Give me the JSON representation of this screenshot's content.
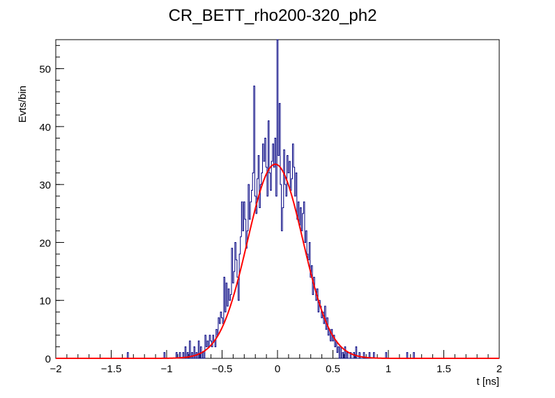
{
  "chart_data": {
    "type": "histogram",
    "title": "CR_BETT_rho200-320_ph2",
    "xlabel": "t [ns]",
    "ylabel": "Evts/bin",
    "xlim": [
      -2,
      2
    ],
    "ylim": [
      0,
      55
    ],
    "x_ticks": [
      "−2",
      "−1.5",
      "−1",
      "−0.5",
      "0",
      "0.5",
      "1",
      "1.5",
      "2"
    ],
    "y_ticks": [
      "0",
      "10",
      "20",
      "30",
      "40",
      "50"
    ],
    "bin_width": 0.01,
    "histogram_color": "#000080",
    "fit_color": "#ff0000",
    "bins": [
      {
        "x": -1.35,
        "y": 1
      },
      {
        "x": -1.02,
        "y": 1
      },
      {
        "x": -0.91,
        "y": 1
      },
      {
        "x": -0.88,
        "y": 1
      },
      {
        "x": -0.85,
        "y": 1
      },
      {
        "x": -0.83,
        "y": 2
      },
      {
        "x": -0.81,
        "y": 1
      },
      {
        "x": -0.79,
        "y": 3
      },
      {
        "x": -0.77,
        "y": 1
      },
      {
        "x": -0.75,
        "y": 2
      },
      {
        "x": -0.73,
        "y": 1
      },
      {
        "x": -0.71,
        "y": 3
      },
      {
        "x": -0.69,
        "y": 2
      },
      {
        "x": -0.67,
        "y": 1
      },
      {
        "x": -0.65,
        "y": 4
      },
      {
        "x": -0.64,
        "y": 2
      },
      {
        "x": -0.63,
        "y": 3
      },
      {
        "x": -0.62,
        "y": 2
      },
      {
        "x": -0.61,
        "y": 4
      },
      {
        "x": -0.6,
        "y": 3
      },
      {
        "x": -0.59,
        "y": 2
      },
      {
        "x": -0.58,
        "y": 4
      },
      {
        "x": -0.57,
        "y": 3
      },
      {
        "x": -0.56,
        "y": 2
      },
      {
        "x": -0.55,
        "y": 5
      },
      {
        "x": -0.54,
        "y": 4
      },
      {
        "x": -0.53,
        "y": 7
      },
      {
        "x": -0.52,
        "y": 6
      },
      {
        "x": -0.51,
        "y": 8
      },
      {
        "x": -0.5,
        "y": 7
      },
      {
        "x": -0.49,
        "y": 6
      },
      {
        "x": -0.48,
        "y": 14
      },
      {
        "x": -0.47,
        "y": 8
      },
      {
        "x": -0.46,
        "y": 13
      },
      {
        "x": -0.45,
        "y": 9
      },
      {
        "x": -0.44,
        "y": 12
      },
      {
        "x": -0.43,
        "y": 10
      },
      {
        "x": -0.42,
        "y": 11
      },
      {
        "x": -0.41,
        "y": 19
      },
      {
        "x": -0.4,
        "y": 13
      },
      {
        "x": -0.39,
        "y": 15
      },
      {
        "x": -0.38,
        "y": 20
      },
      {
        "x": -0.37,
        "y": 17
      },
      {
        "x": -0.36,
        "y": 14
      },
      {
        "x": -0.35,
        "y": 10
      },
      {
        "x": -0.34,
        "y": 18
      },
      {
        "x": -0.33,
        "y": 21
      },
      {
        "x": -0.32,
        "y": 27
      },
      {
        "x": -0.31,
        "y": 22
      },
      {
        "x": -0.3,
        "y": 27
      },
      {
        "x": -0.29,
        "y": 24
      },
      {
        "x": -0.28,
        "y": 19
      },
      {
        "x": -0.27,
        "y": 22
      },
      {
        "x": -0.26,
        "y": 30
      },
      {
        "x": -0.25,
        "y": 24
      },
      {
        "x": -0.24,
        "y": 27
      },
      {
        "x": -0.23,
        "y": 29
      },
      {
        "x": -0.22,
        "y": 32
      },
      {
        "x": -0.21,
        "y": 47
      },
      {
        "x": -0.2,
        "y": 28
      },
      {
        "x": -0.19,
        "y": 25
      },
      {
        "x": -0.18,
        "y": 31
      },
      {
        "x": -0.17,
        "y": 35
      },
      {
        "x": -0.16,
        "y": 26
      },
      {
        "x": -0.15,
        "y": 30
      },
      {
        "x": -0.14,
        "y": 32
      },
      {
        "x": -0.13,
        "y": 37
      },
      {
        "x": -0.12,
        "y": 34
      },
      {
        "x": -0.11,
        "y": 38
      },
      {
        "x": -0.1,
        "y": 33
      },
      {
        "x": -0.09,
        "y": 28
      },
      {
        "x": -0.08,
        "y": 41
      },
      {
        "x": -0.07,
        "y": 32
      },
      {
        "x": -0.06,
        "y": 29
      },
      {
        "x": -0.05,
        "y": 34
      },
      {
        "x": -0.04,
        "y": 37
      },
      {
        "x": -0.03,
        "y": 33
      },
      {
        "x": -0.02,
        "y": 38
      },
      {
        "x": -0.01,
        "y": 28
      },
      {
        "x": 0.0,
        "y": 55
      },
      {
        "x": 0.01,
        "y": 35
      },
      {
        "x": 0.02,
        "y": 44
      },
      {
        "x": 0.03,
        "y": 30
      },
      {
        "x": 0.04,
        "y": 22
      },
      {
        "x": 0.05,
        "y": 26
      },
      {
        "x": 0.06,
        "y": 36
      },
      {
        "x": 0.07,
        "y": 30
      },
      {
        "x": 0.08,
        "y": 28
      },
      {
        "x": 0.09,
        "y": 35
      },
      {
        "x": 0.1,
        "y": 32
      },
      {
        "x": 0.11,
        "y": 34
      },
      {
        "x": 0.12,
        "y": 29
      },
      {
        "x": 0.13,
        "y": 31
      },
      {
        "x": 0.14,
        "y": 37
      },
      {
        "x": 0.15,
        "y": 33
      },
      {
        "x": 0.16,
        "y": 28
      },
      {
        "x": 0.17,
        "y": 32
      },
      {
        "x": 0.18,
        "y": 24
      },
      {
        "x": 0.19,
        "y": 27
      },
      {
        "x": 0.2,
        "y": 23
      },
      {
        "x": 0.21,
        "y": 26
      },
      {
        "x": 0.22,
        "y": 22
      },
      {
        "x": 0.23,
        "y": 25
      },
      {
        "x": 0.24,
        "y": 27
      },
      {
        "x": 0.25,
        "y": 20
      },
      {
        "x": 0.26,
        "y": 22
      },
      {
        "x": 0.27,
        "y": 18
      },
      {
        "x": 0.28,
        "y": 17
      },
      {
        "x": 0.29,
        "y": 20
      },
      {
        "x": 0.3,
        "y": 14
      },
      {
        "x": 0.31,
        "y": 16
      },
      {
        "x": 0.32,
        "y": 11
      },
      {
        "x": 0.33,
        "y": 14
      },
      {
        "x": 0.34,
        "y": 12
      },
      {
        "x": 0.35,
        "y": 10
      },
      {
        "x": 0.36,
        "y": 12
      },
      {
        "x": 0.37,
        "y": 8
      },
      {
        "x": 0.38,
        "y": 10
      },
      {
        "x": 0.39,
        "y": 9
      },
      {
        "x": 0.4,
        "y": 7
      },
      {
        "x": 0.41,
        "y": 8
      },
      {
        "x": 0.42,
        "y": 6
      },
      {
        "x": 0.43,
        "y": 9
      },
      {
        "x": 0.44,
        "y": 5
      },
      {
        "x": 0.45,
        "y": 7
      },
      {
        "x": 0.46,
        "y": 4
      },
      {
        "x": 0.47,
        "y": 5
      },
      {
        "x": 0.48,
        "y": 3
      },
      {
        "x": 0.49,
        "y": 5
      },
      {
        "x": 0.5,
        "y": 3
      },
      {
        "x": 0.51,
        "y": 4
      },
      {
        "x": 0.52,
        "y": 2
      },
      {
        "x": 0.53,
        "y": 3
      },
      {
        "x": 0.54,
        "y": 1
      },
      {
        "x": 0.55,
        "y": 2
      },
      {
        "x": 0.57,
        "y": 2
      },
      {
        "x": 0.59,
        "y": 1
      },
      {
        "x": 0.61,
        "y": 2
      },
      {
        "x": 0.63,
        "y": 1
      },
      {
        "x": 0.66,
        "y": 1
      },
      {
        "x": 0.69,
        "y": 1
      },
      {
        "x": 0.71,
        "y": 2
      },
      {
        "x": 0.74,
        "y": 1
      },
      {
        "x": 0.78,
        "y": 1
      },
      {
        "x": 0.83,
        "y": 1
      },
      {
        "x": 0.87,
        "y": 1
      },
      {
        "x": 0.98,
        "y": 1
      },
      {
        "x": 1.17,
        "y": 1
      },
      {
        "x": 1.23,
        "y": 1
      }
    ],
    "fit": {
      "function": "gaussian",
      "amplitude": 33.5,
      "mean": -0.02,
      "sigma": 0.25
    }
  }
}
